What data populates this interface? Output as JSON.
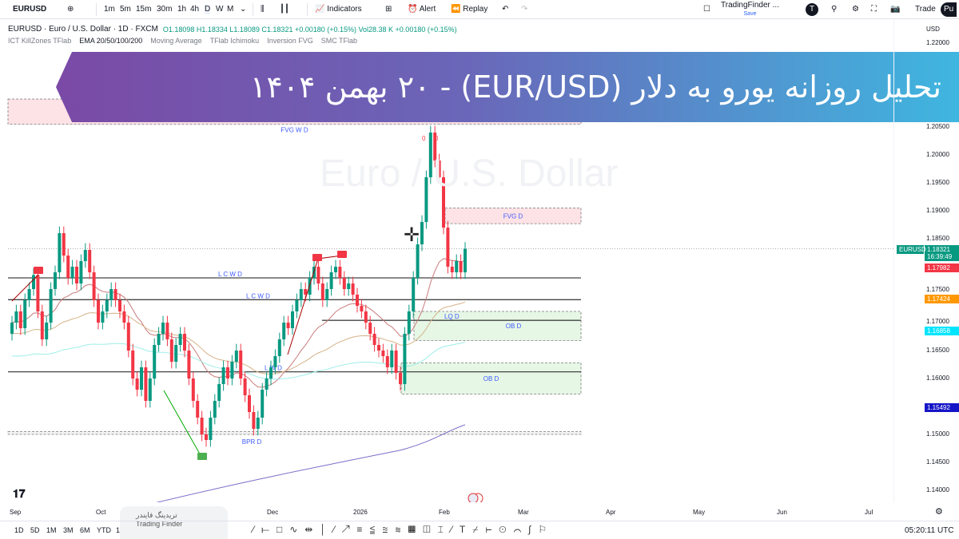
{
  "toolbar": {
    "symbol": "EURUSD",
    "intervals": [
      "1m",
      "5m",
      "15m",
      "30m",
      "1h",
      "4h",
      "D",
      "W",
      "M"
    ],
    "active_interval": "D",
    "indicators": "Indicators",
    "alert": "Alert",
    "replay": "Replay",
    "layout_name": "TradingFinder ...",
    "save": "Save",
    "avatar": "T",
    "trade": "Trade",
    "publish": "Pu"
  },
  "legend": {
    "title": "EURUSD · Euro / U.S. Dollar · 1D · FXCM",
    "ohlc": "O1.18098 H1.18334 L1.18089 C1.18321 +0.00180 (+0.15%) Vol28.38 K +0.00180 (+0.15%)",
    "indicators": [
      "ICT KillZones TFlab",
      "EMA 20/50/100/200",
      "Moving Average",
      "TFlab Ichimoku",
      "Inversion FVG",
      "SMC TFlab"
    ]
  },
  "banner": {
    "text": "تحلیل روزانه یورو به دلار (EUR/USD) - ۲۰ بهمن ۱۴۰۴"
  },
  "watermark": "Euro / U.S. Dollar",
  "axis": {
    "currency": "USD",
    "ticks": [
      "1.22000",
      "1.20500",
      "1.20000",
      "1.19500",
      "1.19000",
      "1.18500",
      "1.17500",
      "1.17000",
      "1.16500",
      "1.16000",
      "1.15000",
      "1.14500",
      "1.14000"
    ],
    "last_symbol": "EURUSD",
    "last_price": "1.18321",
    "countdown": "16:39:49",
    "labels": [
      {
        "v": "1.17982",
        "c": "#f23645"
      },
      {
        "v": "1.17424",
        "c": "#ff9800"
      },
      {
        "v": "1.16858",
        "c": "#00e5ff"
      },
      {
        "v": "1.15492",
        "c": "#1515c8"
      }
    ]
  },
  "xaxis": [
    "Sep",
    "Oct",
    "Dec",
    "2026",
    "Feb",
    "Mar",
    "Apr",
    "May",
    "Jun",
    "Jul"
  ],
  "bottom": {
    "ranges": [
      "1D",
      "5D",
      "1M",
      "3M",
      "6M",
      "YTD",
      "1"
    ],
    "time": "05:20:11 UTC"
  },
  "logo": {
    "fa": "تریدینگ فایندر",
    "en": "Trading Finder"
  },
  "chart_data": {
    "type": "candlestick",
    "ylim": [
      1.135,
      1.222
    ],
    "colors": {
      "up": "#089981",
      "down": "#f23645"
    },
    "x_start": "Sep",
    "closes": [
      1.17,
      1.172,
      1.169,
      1.174,
      1.176,
      1.1785,
      1.172,
      1.167,
      1.17,
      1.176,
      1.179,
      1.186,
      1.182,
      1.178,
      1.18,
      1.177,
      1.181,
      1.183,
      1.179,
      1.174,
      1.17,
      1.172,
      1.174,
      1.176,
      1.174,
      1.172,
      1.17,
      1.165,
      1.16,
      1.158,
      1.162,
      1.156,
      1.16,
      1.166,
      1.168,
      1.17,
      1.167,
      1.163,
      1.166,
      1.168,
      1.165,
      1.16,
      1.156,
      1.153,
      1.15,
      1.149,
      1.153,
      1.156,
      1.159,
      1.162,
      1.16,
      1.163,
      1.165,
      1.16,
      1.157,
      1.154,
      1.151,
      1.153,
      1.158,
      1.16,
      1.162,
      1.164,
      1.167,
      1.17,
      1.169,
      1.172,
      1.174,
      1.176,
      1.175,
      1.178,
      1.18,
      1.177,
      1.174,
      1.176,
      1.179,
      1.18,
      1.178,
      1.176,
      1.177,
      1.175,
      1.173,
      1.172,
      1.17,
      1.168,
      1.166,
      1.165,
      1.164,
      1.162,
      1.165,
      1.161,
      1.159,
      1.168,
      1.172,
      1.178,
      1.184,
      1.188,
      1.196,
      1.204,
      1.199,
      1.196,
      1.187,
      1.18,
      1.179,
      1.181,
      1.179,
      1.1832
    ],
    "levels": [
      {
        "label": "L C W D",
        "price": 1.178
      },
      {
        "label": "L C W D",
        "price": 1.1741
      },
      {
        "label": "L W D",
        "price": 1.1612
      },
      {
        "label": "LQ D",
        "price": 1.1704
      }
    ],
    "zones": [
      {
        "label": "FVG W D",
        "top": 1.21,
        "bottom": 1.2055,
        "color": "#fde2e6"
      },
      {
        "label": "FVG D",
        "top": 1.1905,
        "bottom": 1.1877,
        "color": "#fde2e6"
      },
      {
        "label": "OB D",
        "top": 1.172,
        "bottom": 1.1668,
        "color": "#e6f7e6"
      },
      {
        "label": "OB D",
        "top": 1.1628,
        "bottom": 1.1572,
        "color": "#e6f7e6"
      },
      {
        "label": "BPR D",
        "top": 1.1505,
        "bottom": 1.15,
        "color": "#f3f3f3"
      }
    ],
    "fib_labels": [
      "0",
      "0"
    ]
  }
}
